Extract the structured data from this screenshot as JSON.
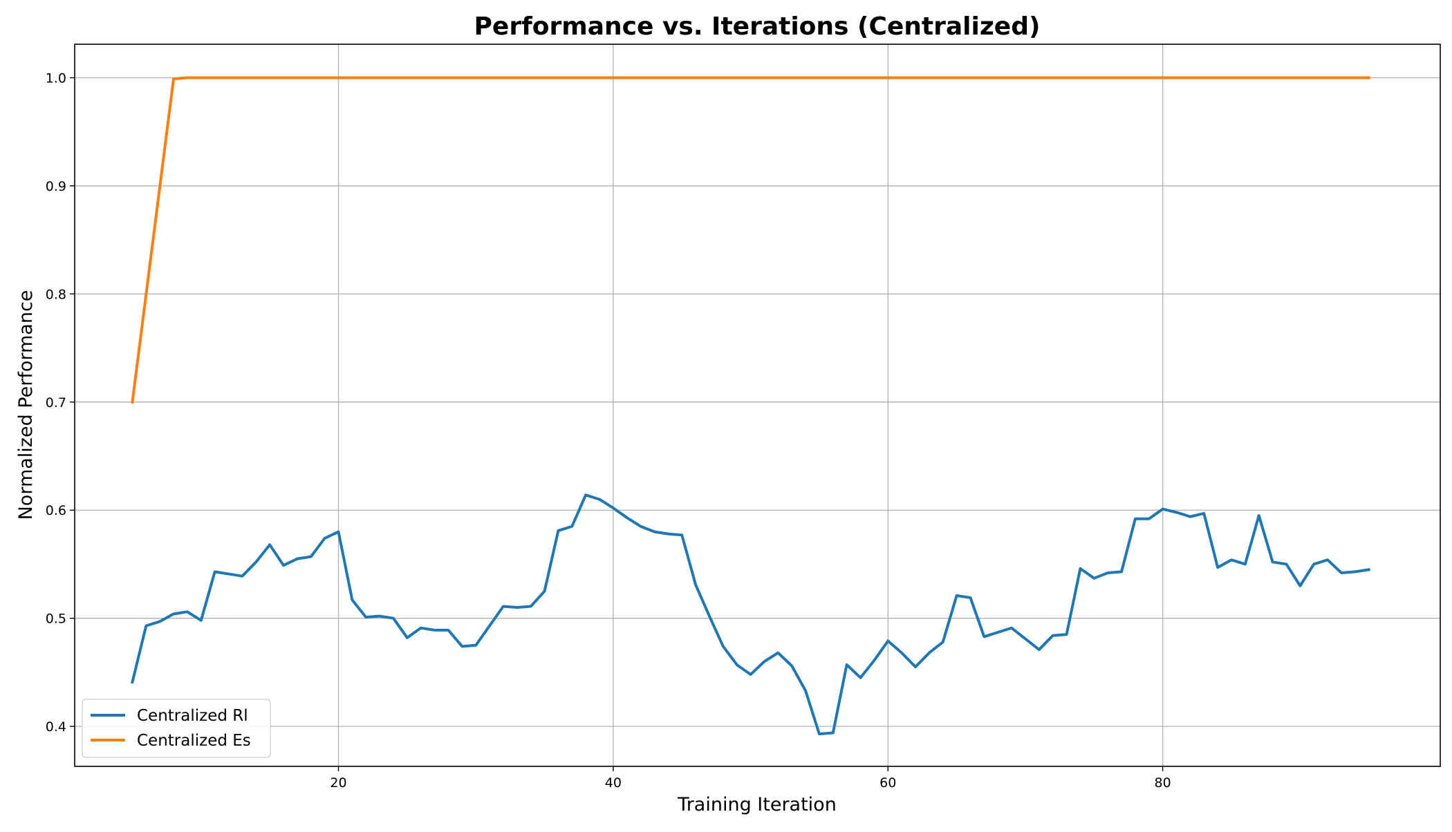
{
  "chart_data": {
    "type": "line",
    "title": "Performance vs. Iterations (Centralized)",
    "xlabel": "Training Iteration",
    "ylabel": "Normalized Performance",
    "xlim": [
      0.8,
      100.2
    ],
    "ylim": [
      0.363,
      1.031
    ],
    "xticks": [
      20,
      40,
      60,
      80
    ],
    "yticks": [
      0.4,
      0.5,
      0.6,
      0.7,
      0.8,
      0.9,
      1.0
    ],
    "xtick_labels": [
      "20",
      "40",
      "60",
      "80"
    ],
    "ytick_labels": [
      "0.4",
      "0.5",
      "0.6",
      "0.7",
      "0.8",
      "0.9",
      "1.0"
    ],
    "grid": true,
    "legend_position": "lower-left",
    "series": [
      {
        "name": "Centralized Rl",
        "color": "#1f77b4",
        "x": [
          5,
          6,
          7,
          8,
          9,
          10,
          11,
          12,
          13,
          14,
          15,
          16,
          17,
          18,
          19,
          20,
          21,
          22,
          23,
          24,
          25,
          26,
          27,
          28,
          29,
          30,
          31,
          32,
          33,
          34,
          35,
          36,
          37,
          38,
          39,
          40,
          41,
          42,
          43,
          44,
          45,
          46,
          47,
          48,
          49,
          50,
          51,
          52,
          53,
          54,
          55,
          56,
          57,
          58,
          59,
          60,
          61,
          62,
          63,
          64,
          65,
          66,
          67,
          68,
          69,
          70,
          71,
          72,
          73,
          74,
          75,
          76,
          77,
          78,
          79,
          80,
          81,
          82,
          83,
          84,
          85,
          86,
          87,
          88,
          89,
          90,
          91,
          92,
          93,
          94,
          95
        ],
        "y": [
          0.441,
          0.493,
          0.497,
          0.504,
          0.506,
          0.498,
          0.543,
          0.541,
          0.539,
          0.552,
          0.568,
          0.549,
          0.555,
          0.557,
          0.574,
          0.58,
          0.517,
          0.501,
          0.502,
          0.5,
          0.482,
          0.491,
          0.489,
          0.489,
          0.474,
          0.475,
          0.493,
          0.511,
          0.51,
          0.511,
          0.525,
          0.581,
          0.585,
          0.614,
          0.61,
          0.602,
          0.593,
          0.585,
          0.58,
          0.578,
          0.577,
          0.531,
          0.502,
          0.474,
          0.457,
          0.448,
          0.46,
          0.468,
          0.456,
          0.433,
          0.393,
          0.394,
          0.457,
          0.445,
          0.461,
          0.479,
          0.468,
          0.455,
          0.468,
          0.478,
          0.521,
          0.519,
          0.483,
          0.487,
          0.491,
          0.481,
          0.471,
          0.484,
          0.485,
          0.546,
          0.537,
          0.542,
          0.543,
          0.592,
          0.592,
          0.601,
          0.598,
          0.594,
          0.597,
          0.547,
          0.554,
          0.55,
          0.595,
          0.552,
          0.55,
          0.53,
          0.55,
          0.554,
          0.542,
          0.543,
          0.545
        ]
      },
      {
        "name": "Centralized Es",
        "color": "#ff7f0e",
        "x": [
          5,
          8,
          9,
          10,
          20,
          30,
          40,
          50,
          60,
          70,
          80,
          90,
          95
        ],
        "y": [
          0.7,
          0.999,
          1.0,
          1.0,
          1.0,
          1.0,
          1.0,
          1.0,
          1.0,
          1.0,
          1.0,
          1.0,
          1.0
        ]
      }
    ]
  }
}
